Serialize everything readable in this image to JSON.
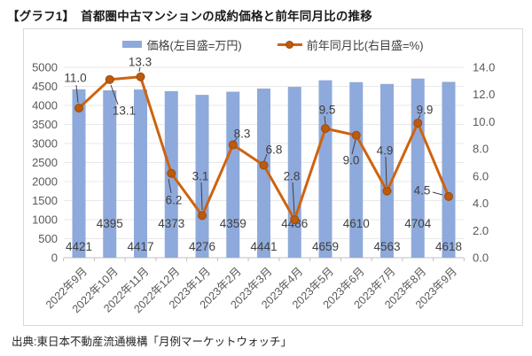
{
  "title": "【グラフ1】　首都圏中古マンションの成約価格と前年同月比の推移",
  "source": "出典:東日本不動産流通機構「月例マーケットウォッチ」",
  "legend": {
    "price_label": "価格(左目盛=万円)",
    "yoy_label": "前年同月比(右目盛=%)"
  },
  "colors": {
    "bar": "#8EA9DB",
    "line": "#CE6310",
    "marker": "#BC5A0E",
    "marker_edge": "#9E4B09",
    "grid": "#E8E8E8",
    "axis_line": "#BFBFBF",
    "border": "#D9D9D9",
    "axis_text": "#595959",
    "data_label": "#404040",
    "leader": "#404040"
  },
  "chart_data": {
    "type": "bar",
    "title": "首都圏中古マンションの成約価格と前年同月比の推移",
    "categories": [
      "2022年9月",
      "2022年10月",
      "2022年11月",
      "2022年12月",
      "2023年1月",
      "2023年2月",
      "2023年3月",
      "2023年4月",
      "2023年5月",
      "2023年6月",
      "2023年7月",
      "2023年8月",
      "2023年9月"
    ],
    "series": [
      {
        "name": "価格(左目盛=万円)",
        "type": "bar",
        "axis": "left",
        "values": [
          4421,
          4395,
          4417,
          4373,
          4276,
          4359,
          4441,
          4486,
          4659,
          4610,
          4563,
          4704,
          4618
        ]
      },
      {
        "name": "前年同月比(右目盛=%)",
        "type": "line",
        "axis": "right",
        "values": [
          11.0,
          13.1,
          13.3,
          6.2,
          3.1,
          8.3,
          6.8,
          2.8,
          9.5,
          9.0,
          4.9,
          9.9,
          4.5
        ]
      }
    ],
    "left_axis": {
      "label": "万円",
      "min": 0,
      "max": 5000,
      "step": 500,
      "ticks": [
        "0",
        "500",
        "1000",
        "1500",
        "2000",
        "2500",
        "3000",
        "3500",
        "4000",
        "4500",
        "5000"
      ]
    },
    "right_axis": {
      "label": "%",
      "min": 0.0,
      "max": 14.0,
      "step": 2.0,
      "ticks": [
        "0.0",
        "2.0",
        "4.0",
        "6.0",
        "8.0",
        "10.0",
        "12.0",
        "14.0"
      ]
    },
    "grid": true,
    "legend_position": "top",
    "data_labels": true
  }
}
